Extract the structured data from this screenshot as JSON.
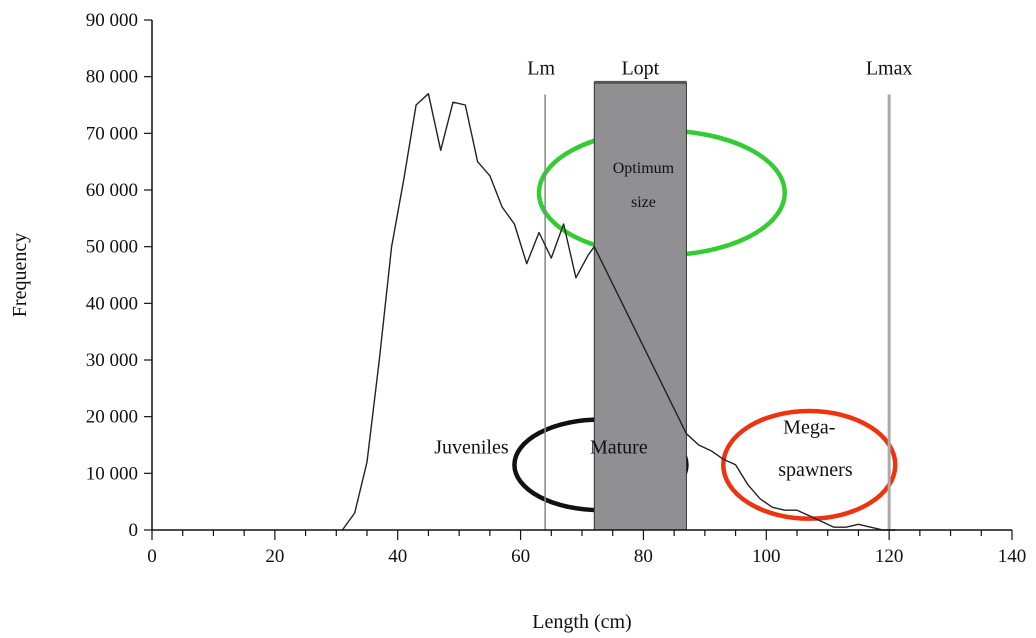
{
  "chart_data": {
    "type": "line",
    "xlabel": "Length (cm)",
    "ylabel": "Frequency",
    "xlim": [
      0,
      140
    ],
    "ylim": [
      0,
      90000
    ],
    "xticks": [
      0,
      20,
      40,
      60,
      80,
      100,
      120,
      140
    ],
    "xtick_labels": [
      "0",
      "20",
      "40",
      "60",
      "80",
      "100",
      "120",
      "140"
    ],
    "yticks": [
      0,
      10000,
      20000,
      30000,
      40000,
      50000,
      60000,
      70000,
      80000,
      90000
    ],
    "ytick_labels": [
      "0",
      "10 000",
      "20 000",
      "30 000",
      "40 000",
      "50 000",
      "60 000",
      "70 000",
      "80 000",
      "90 000"
    ],
    "grid": false,
    "series": [
      {
        "x": [
          31,
          33,
          35,
          37,
          39,
          41,
          43,
          45,
          47,
          49,
          51,
          53,
          55,
          57,
          59,
          61,
          63,
          65,
          67,
          69,
          71,
          72,
          87,
          89,
          91,
          93,
          95,
          97,
          99,
          101,
          103,
          105,
          107,
          109,
          111,
          113,
          115,
          117,
          119,
          121
        ],
        "y": [
          0,
          3000,
          12000,
          30000,
          50000,
          62000,
          75000,
          77000,
          67000,
          75500,
          75000,
          65000,
          62500,
          57000,
          54000,
          47000,
          52500,
          48000,
          54000,
          44500,
          48500,
          50000,
          17000,
          15000,
          14000,
          12500,
          11500,
          8000,
          5500,
          4000,
          3500,
          3500,
          2500,
          1500,
          500,
          500,
          1000,
          500,
          0,
          0
        ],
        "color": "#222222"
      }
    ],
    "annotations": {
      "reference_lines": [
        {
          "label": "Lm",
          "x": 64,
          "color": "#888888"
        },
        {
          "label": "Lmax",
          "x": 120,
          "color": "#aaaaaa"
        }
      ],
      "band": {
        "label": "Lopt",
        "x_from": 72,
        "x_to": 87,
        "y_top": 79000,
        "color": "#909093"
      },
      "text_labels": [
        {
          "text": "Juveniles",
          "x": 52,
          "y": 13500
        },
        {
          "text": "Mature",
          "x": 76,
          "y": 13500
        },
        {
          "text": "Mega-",
          "x": 107,
          "y": 17000
        },
        {
          "text": "spawners",
          "x": 108,
          "y": 9500
        },
        {
          "text": "Optimum",
          "x": 80,
          "y": 63000
        },
        {
          "text": "size",
          "x": 80,
          "y": 57000
        }
      ],
      "ellipses": [
        {
          "name": "optimum-size-ellipse",
          "cx": 83,
          "cy": 59500,
          "rx": 20,
          "ry": 11000,
          "color": "#33cc33"
        },
        {
          "name": "mature-ellipse",
          "cx": 73,
          "cy": 11500,
          "rx": 14,
          "ry": 8000,
          "color": "#111111"
        },
        {
          "name": "mega-spawners-ellipse",
          "cx": 107,
          "cy": 11500,
          "rx": 14,
          "ry": 9500,
          "color": "#ee3311"
        }
      ]
    }
  }
}
